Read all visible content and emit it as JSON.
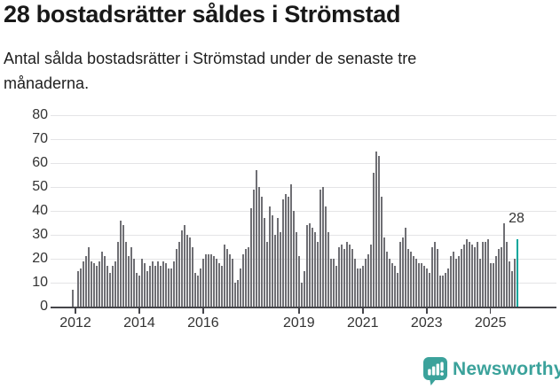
{
  "header": {
    "title": "28 bostadsrätter såldes i Strömstad",
    "subtitle": "Antal sålda bostadsrätter i Strömstad under de senaste tre månaderna."
  },
  "chart_data": {
    "type": "bar",
    "title": "28 bostadsrätter såldes i Strömstad",
    "ylabel": "",
    "xlabel": "",
    "ylim": [
      0,
      80
    ],
    "yticks": [
      0,
      10,
      20,
      30,
      40,
      50,
      60,
      70,
      80
    ],
    "xtick_years": [
      2012,
      2014,
      2016,
      2019,
      2021,
      2023,
      2025
    ],
    "frequency": "monthly",
    "x_start": "2011-12",
    "x_end": "2025-11",
    "grid": true,
    "legend": "none",
    "bar_color": "#6f6f74",
    "highlight_color": "#00a69b",
    "highlight_last": true,
    "highlight_label": "28",
    "values": [
      7,
      0,
      15,
      16,
      19,
      21,
      25,
      19,
      18,
      17,
      19,
      23,
      21,
      17,
      14,
      17,
      19,
      27,
      36,
      34,
      27,
      21,
      25,
      20,
      14,
      13,
      20,
      18,
      15,
      17,
      19,
      17,
      19,
      17,
      19,
      18,
      16,
      16,
      19,
      24,
      27,
      32,
      34,
      30,
      29,
      25,
      14,
      13,
      16,
      20,
      22,
      22,
      22,
      21,
      20,
      18,
      17,
      26,
      24,
      22,
      20,
      10,
      11,
      16,
      22,
      24,
      25,
      41,
      49,
      57,
      50,
      46,
      37,
      27,
      42,
      38,
      30,
      37,
      31,
      45,
      47,
      46,
      51,
      40,
      31,
      21,
      10,
      15,
      34,
      35,
      33,
      31,
      27,
      49,
      50,
      42,
      31,
      20,
      20,
      17,
      25,
      26,
      24,
      27,
      26,
      24,
      20,
      16,
      16,
      17,
      20,
      22,
      26,
      56,
      65,
      63,
      46,
      29,
      23,
      20,
      18,
      17,
      14,
      27,
      29,
      33,
      24,
      23,
      21,
      20,
      18,
      18,
      17,
      16,
      14,
      25,
      27,
      24,
      13,
      13,
      14,
      16,
      21,
      23,
      20,
      21,
      24,
      26,
      28,
      27,
      26,
      25,
      27,
      20,
      27,
      27,
      28,
      18,
      18,
      21,
      24,
      25,
      35,
      27,
      19,
      15,
      20,
      28
    ]
  },
  "footer": {
    "brand": "Newsworthy",
    "logo_icon": "bar-chart-speech-bubble-icon",
    "brand_color": "#3ba29b"
  }
}
